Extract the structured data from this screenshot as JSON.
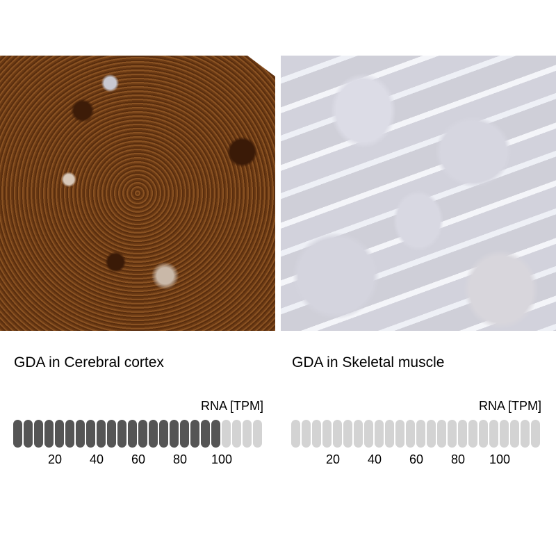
{
  "panels": [
    {
      "title": "GDA in Cerebral cortex",
      "rna_label": "RNA [TPM]",
      "segments_total": 24,
      "segments_filled": 20,
      "tpm_per_segment": 5,
      "fill_color": "#555555",
      "empty_color": "#d3d3d3",
      "ticks": [
        "20",
        "40",
        "60",
        "80",
        "100"
      ]
    },
    {
      "title": "GDA in Skeletal muscle",
      "rna_label": "RNA [TPM]",
      "segments_total": 24,
      "segments_filled": 0,
      "tpm_per_segment": 5,
      "fill_color": "#555555",
      "empty_color": "#d3d3d3",
      "ticks": [
        "20",
        "40",
        "60",
        "80",
        "100"
      ]
    }
  ]
}
